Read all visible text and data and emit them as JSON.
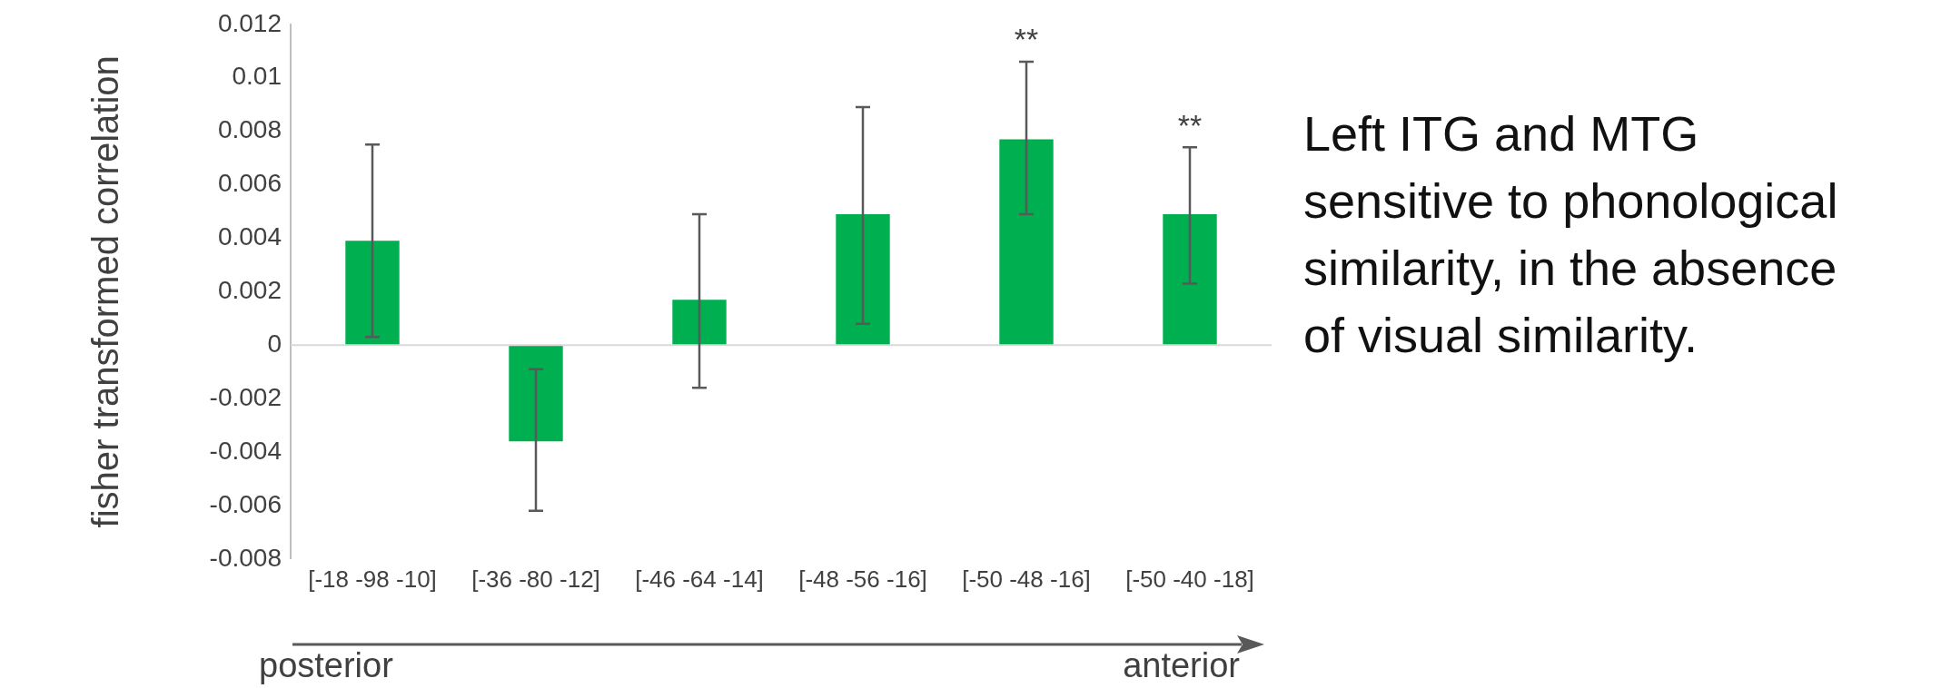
{
  "chart_data": {
    "type": "bar",
    "ylabel": "fisher transformed correlation",
    "categories": [
      "[-18 -98 -10]",
      "[-36 -80 -12]",
      "[-46 -64 -14]",
      "[-48 -56 -16]",
      "[-50 -48 -16]",
      "[-50 -40 -18]"
    ],
    "values": [
      0.0039,
      -0.0036,
      0.0017,
      0.0049,
      0.0077,
      0.0049
    ],
    "errors": [
      [
        0.0003,
        0.0075
      ],
      [
        -0.0062,
        -0.0009
      ],
      [
        -0.0016,
        0.0049
      ],
      [
        0.0008,
        0.0089
      ],
      [
        0.0049,
        0.0106
      ],
      [
        0.0023,
        0.0074
      ]
    ],
    "color": "#00b050",
    "ylim": [
      -0.008,
      0.012
    ],
    "yticks": [
      -0.008,
      -0.006,
      -0.004,
      -0.002,
      0,
      0.002,
      0.004,
      0.006,
      0.008,
      0.01,
      0.012
    ],
    "grid": false,
    "legend": false,
    "ref_lines": [
      {
        "axis": "y",
        "value": 0,
        "color": "#d9d9d9"
      }
    ],
    "annotations": [
      "**",
      "**",
      "posterior",
      "anterior",
      "Left ITG and MTG sensitive to phonological similarity, in the absence of visual similarity."
    ]
  }
}
